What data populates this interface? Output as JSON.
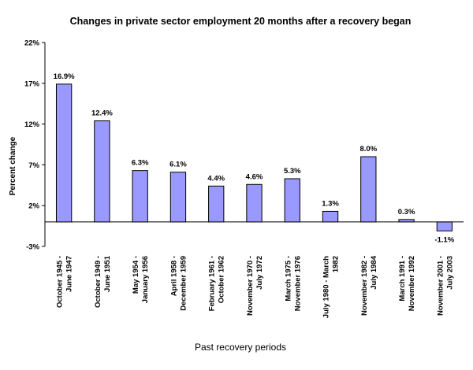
{
  "chart_data": {
    "type": "bar",
    "title": "Changes in private sector employment 20 months after a recovery began",
    "xlabel": "Past recovery periods",
    "ylabel": "Percent change",
    "ylim": [
      -3,
      22
    ],
    "yticks": [
      "-3%",
      "2%",
      "7%",
      "12%",
      "17%",
      "22%"
    ],
    "ytick_values": [
      -3,
      2,
      7,
      12,
      17,
      22
    ],
    "categories": [
      [
        "October 1945 -",
        "June 1947"
      ],
      [
        "October 1949 -",
        "June 1951"
      ],
      [
        "May 1954 -",
        "January 1956"
      ],
      [
        "April 1958 -",
        "December 1959"
      ],
      [
        "February 1961 -",
        "October 1962"
      ],
      [
        "November 1970 -",
        "July 1972"
      ],
      [
        "March 1975 -",
        "November 1976"
      ],
      [
        "July 1980 - March",
        "1982"
      ],
      [
        "November 1982 -",
        "July 1984"
      ],
      [
        "March 1991 -",
        "November 1992"
      ],
      [
        "November 2001 -",
        "July 2003"
      ]
    ],
    "values": [
      16.9,
      12.4,
      6.3,
      6.1,
      4.4,
      4.6,
      5.3,
      1.3,
      8.0,
      0.3,
      -1.1
    ],
    "data_labels": [
      "16.9%",
      "12.4%",
      "6.3%",
      "6.1%",
      "4.4%",
      "4.6%",
      "5.3%",
      "1.3%",
      "8.0%",
      "0.3%",
      "-1.1%"
    ],
    "bar_color": "#9999FF",
    "bar_edge_color": "#000000",
    "grid": false,
    "legend": "none"
  }
}
